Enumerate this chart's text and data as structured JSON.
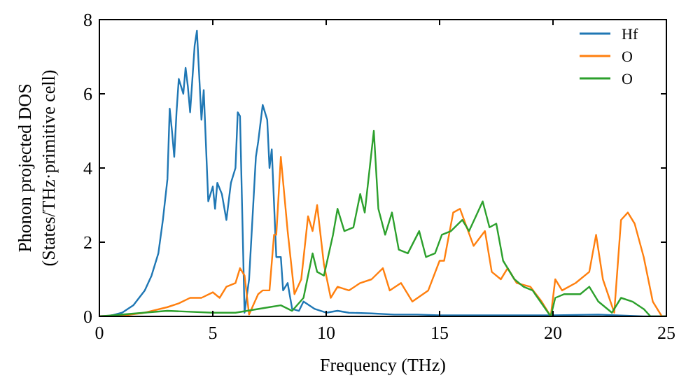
{
  "chart_data": {
    "type": "line",
    "xlabel": "Frequency (THz)",
    "ylabel": "Phonon projected DOS\n(States/THz·primitive cell)",
    "xlim": [
      0,
      25
    ],
    "ylim": [
      0,
      8
    ],
    "xticks": [
      0,
      5,
      10,
      15,
      20,
      25
    ],
    "yticks": [
      0,
      2,
      4,
      6,
      8
    ],
    "legend": "top right",
    "grid": false,
    "marker": "none",
    "line_style": "solid",
    "series": [
      {
        "name": "Hf",
        "color": "#1f77b4",
        "x": [
          0,
          0.5,
          1,
          1.5,
          2,
          2.3,
          2.6,
          2.8,
          3.0,
          3.1,
          3.2,
          3.3,
          3.4,
          3.5,
          3.6,
          3.7,
          3.8,
          3.9,
          4.0,
          4.1,
          4.2,
          4.3,
          4.4,
          4.5,
          4.6,
          4.8,
          5.0,
          5.1,
          5.2,
          5.4,
          5.6,
          5.8,
          6.0,
          6.1,
          6.2,
          6.4,
          6.6,
          6.9,
          7.0,
          7.2,
          7.4,
          7.5,
          7.6,
          7.8,
          8.0,
          8.1,
          8.3,
          8.5,
          8.8,
          9,
          9.5,
          10,
          10.5,
          11,
          12,
          13,
          14,
          15,
          20,
          22,
          24,
          25
        ],
        "values": [
          0,
          0.02,
          0.1,
          0.3,
          0.7,
          1.1,
          1.7,
          2.6,
          3.7,
          5.6,
          5.0,
          4.3,
          5.5,
          6.4,
          6.2,
          6.0,
          6.7,
          6.2,
          5.5,
          6.4,
          7.3,
          7.7,
          6.5,
          5.3,
          6.1,
          3.1,
          3.5,
          2.9,
          3.6,
          3.3,
          2.6,
          3.6,
          4.0,
          5.5,
          5.4,
          0.1,
          1.0,
          4.3,
          4.7,
          5.7,
          5.3,
          4.0,
          4.5,
          1.6,
          1.6,
          0.7,
          0.9,
          0.2,
          0.15,
          0.4,
          0.2,
          0.1,
          0.15,
          0.1,
          0.08,
          0.05,
          0.05,
          0.03,
          0.03,
          0.05,
          0,
          0
        ]
      },
      {
        "name": "O",
        "color": "#ff7f0e",
        "x": [
          0,
          1,
          2,
          3,
          3.5,
          4,
          4.5,
          5,
          5.3,
          5.6,
          6,
          6.2,
          6.4,
          6.6,
          7.0,
          7.2,
          7.5,
          7.7,
          7.8,
          8.0,
          8.3,
          8.6,
          8.9,
          9.2,
          9.4,
          9.6,
          9.9,
          10.2,
          10.5,
          11,
          11.5,
          12,
          12.5,
          12.8,
          13.3,
          13.8,
          14.5,
          15,
          15.2,
          15.6,
          15.9,
          16.2,
          16.5,
          17.0,
          17.3,
          17.7,
          18,
          18.4,
          19,
          19.5,
          19.9,
          20.1,
          20.4,
          21,
          21.6,
          21.9,
          22.2,
          22.7,
          23.0,
          23.3,
          23.6,
          24.0,
          24.4,
          24.8,
          25
        ],
        "values": [
          0,
          0.02,
          0.1,
          0.25,
          0.35,
          0.5,
          0.5,
          0.65,
          0.5,
          0.8,
          0.9,
          1.3,
          1.1,
          0.05,
          0.6,
          0.7,
          0.7,
          2.2,
          2.2,
          4.3,
          2.3,
          0.6,
          1.0,
          2.7,
          2.3,
          3.0,
          1.4,
          0.5,
          0.8,
          0.7,
          0.9,
          1.0,
          1.3,
          0.7,
          0.9,
          0.4,
          0.7,
          1.5,
          1.5,
          2.8,
          2.9,
          2.4,
          1.9,
          2.3,
          1.2,
          1.0,
          1.3,
          0.9,
          0.8,
          0.4,
          0,
          1.0,
          0.7,
          0.9,
          1.2,
          2.2,
          1.0,
          0.1,
          2.6,
          2.8,
          2.5,
          1.6,
          0.4,
          0,
          0
        ]
      },
      {
        "name": "O",
        "color": "#2ca02c",
        "x": [
          0,
          3,
          5,
          6,
          7.5,
          8.0,
          8.5,
          9,
          9.4,
          9.6,
          9.9,
          10.3,
          10.5,
          10.8,
          11.2,
          11.5,
          11.7,
          12.1,
          12.3,
          12.6,
          12.9,
          13.2,
          13.6,
          14.1,
          14.4,
          14.8,
          15.1,
          15.5,
          16.0,
          16.3,
          16.6,
          16.9,
          17.2,
          17.5,
          17.8,
          18.3,
          18.7,
          19.1,
          19.9,
          20.1,
          20.5,
          21.2,
          21.6,
          22.0,
          22.6,
          23.0,
          23.5,
          24.0,
          24.3,
          25
        ],
        "values": [
          0,
          0.15,
          0.1,
          0.1,
          0.25,
          0.3,
          0.15,
          0.5,
          1.7,
          1.2,
          1.1,
          2.2,
          2.9,
          2.3,
          2.4,
          3.3,
          2.8,
          5.0,
          2.9,
          2.2,
          2.8,
          1.8,
          1.7,
          2.3,
          1.6,
          1.7,
          2.2,
          2.3,
          2.6,
          2.3,
          2.7,
          3.1,
          2.4,
          2.5,
          1.5,
          1.0,
          0.8,
          0.7,
          0,
          0.5,
          0.6,
          0.6,
          0.8,
          0.4,
          0.1,
          0.5,
          0.4,
          0.2,
          0,
          0
        ]
      }
    ]
  }
}
